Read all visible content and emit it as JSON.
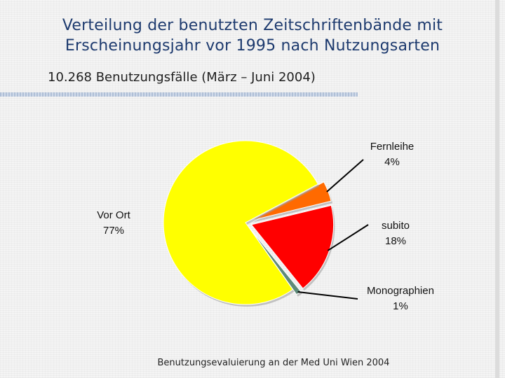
{
  "slide": {
    "title_line1": "Verteilung der benutzten Zeitschriftenbände mit",
    "title_line2": "Erscheinungsjahr vor 1995 nach Nutzungsarten",
    "subtitle": "10.268 Benutzungsfälle (März – Juni 2004)",
    "footer": "Benutzungsevaluierung an der Med Uni Wien 2004"
  },
  "chart_data": {
    "type": "pie",
    "title": "",
    "slices": [
      {
        "name": "Fernleihe",
        "value": 4,
        "label": "4%",
        "color": "#FF6A00",
        "exploded": true
      },
      {
        "name": "subito",
        "value": 18,
        "label": "18%",
        "color": "#FF0000",
        "exploded": true
      },
      {
        "name": "Monographien",
        "value": 1,
        "label": "1%",
        "color": "#5E8A7A",
        "exploded": true
      },
      {
        "name": "Vor Ort",
        "value": 77,
        "label": "77%",
        "color": "#FFFF00",
        "exploded": false
      }
    ],
    "legend": "none"
  }
}
